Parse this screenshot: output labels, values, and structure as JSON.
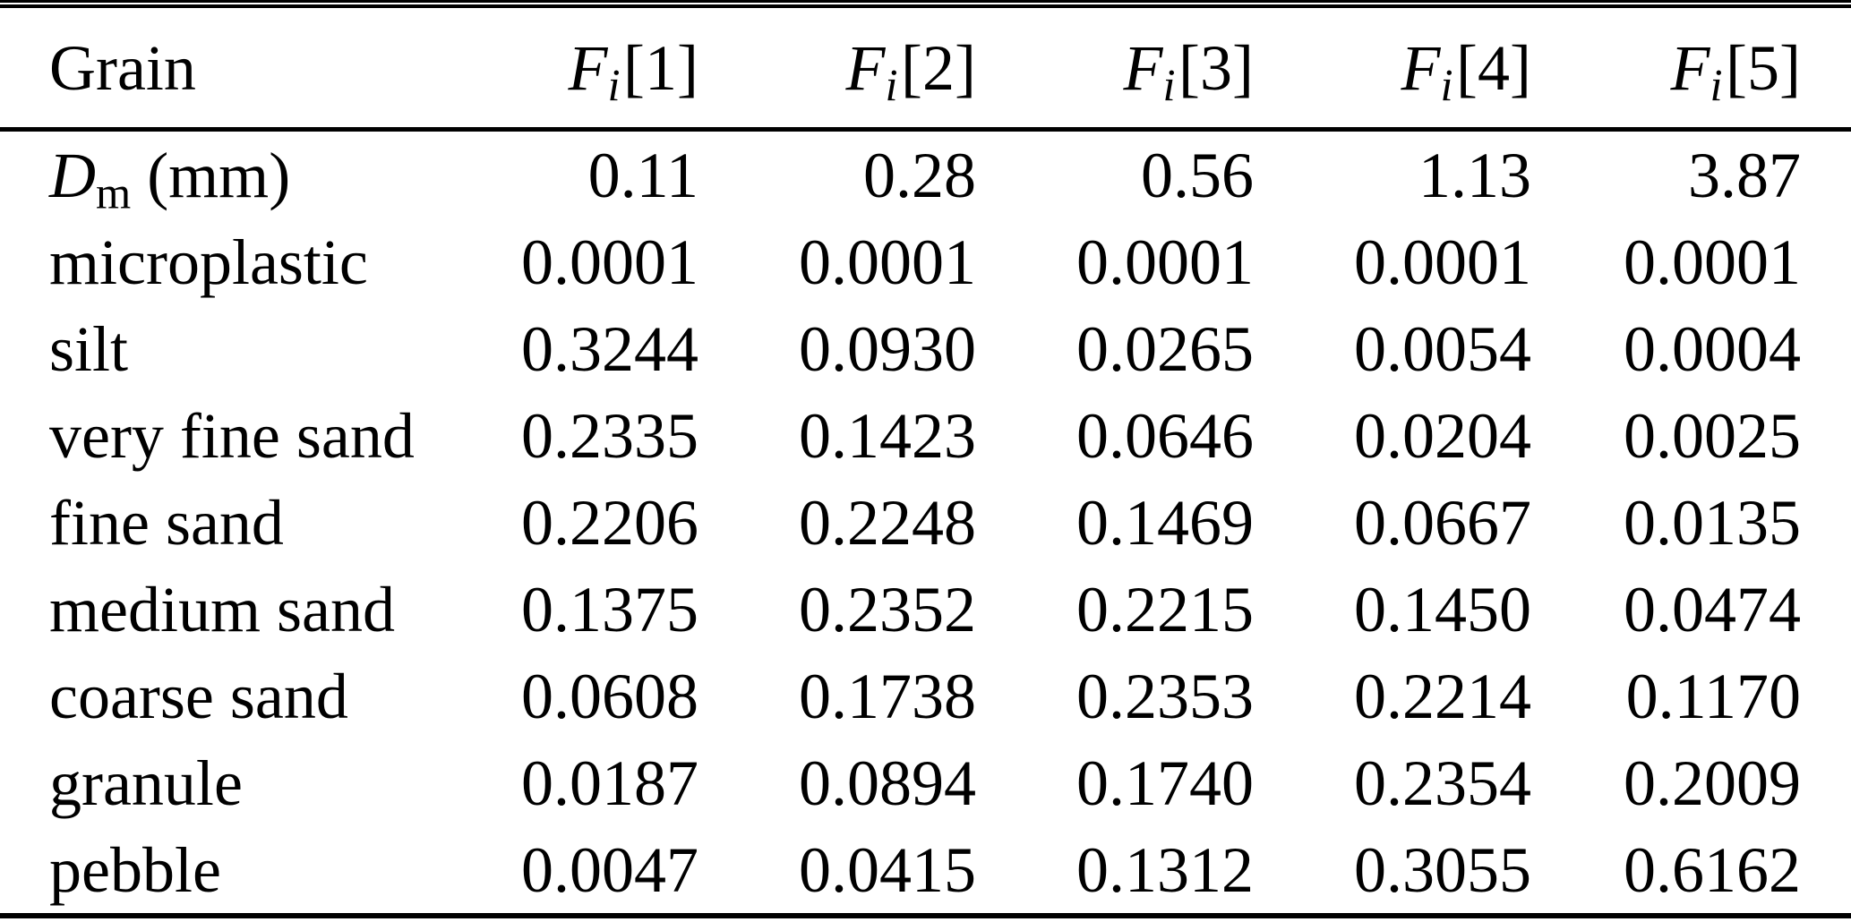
{
  "colors": {
    "text": "#000000",
    "background": "#ffffff",
    "rule": "#000000"
  },
  "table": {
    "header": {
      "grain_label": "Grain",
      "columns": [
        {
          "symbol": "F",
          "subscript": "i",
          "index": "[1]"
        },
        {
          "symbol": "F",
          "subscript": "i",
          "index": "[2]"
        },
        {
          "symbol": "F",
          "subscript": "i",
          "index": "[3]"
        },
        {
          "symbol": "F",
          "subscript": "i",
          "index": "[4]"
        },
        {
          "symbol": "F",
          "subscript": "i",
          "index": "[5]"
        }
      ]
    },
    "rows": [
      {
        "label_italic": "D",
        "label_sub": "m",
        "label_rest": " (mm)",
        "values": [
          "0.11",
          "0.28",
          "0.56",
          "1.13",
          "3.87"
        ]
      },
      {
        "label": "microplastic",
        "values": [
          "0.0001",
          "0.0001",
          "0.0001",
          "0.0001",
          "0.0001"
        ]
      },
      {
        "label": "silt",
        "values": [
          "0.3244",
          "0.0930",
          "0.0265",
          "0.0054",
          "0.0004"
        ]
      },
      {
        "label": "very fine sand",
        "values": [
          "0.2335",
          "0.1423",
          "0.0646",
          "0.0204",
          "0.0025"
        ]
      },
      {
        "label": "fine sand",
        "values": [
          "0.2206",
          "0.2248",
          "0.1469",
          "0.0667",
          "0.0135"
        ]
      },
      {
        "label": "medium sand",
        "values": [
          "0.1375",
          "0.2352",
          "0.2215",
          "0.1450",
          "0.0474"
        ]
      },
      {
        "label": "coarse sand",
        "values": [
          "0.0608",
          "0.1738",
          "0.2353",
          "0.2214",
          "0.1170"
        ]
      },
      {
        "label": "granule",
        "values": [
          "0.0187",
          "0.0894",
          "0.1740",
          "0.2354",
          "0.2009"
        ]
      },
      {
        "label": "pebble",
        "values": [
          "0.0047",
          "0.0415",
          "0.1312",
          "0.3055",
          "0.6162"
        ]
      }
    ]
  }
}
